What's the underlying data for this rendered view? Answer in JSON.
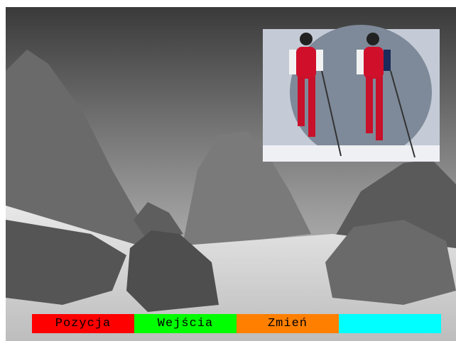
{
  "buttons": [
    {
      "label": "Pozycja"
    },
    {
      "label": "Wejścia"
    },
    {
      "label": "Zmień"
    }
  ]
}
